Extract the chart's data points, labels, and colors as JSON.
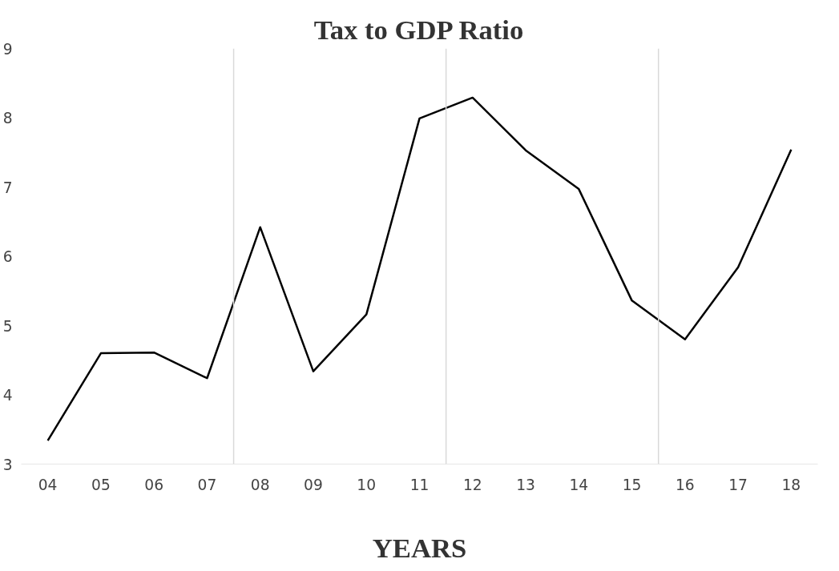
{
  "chart_data": {
    "type": "line",
    "title": "Tax to GDP Ratio",
    "xlabel": "YEARS",
    "x": [
      4,
      5,
      6,
      7,
      8,
      9,
      10,
      11,
      12,
      13,
      14,
      15,
      16,
      17,
      18
    ],
    "series": [
      {
        "color": "#000000",
        "values": [
          3.34,
          4.6,
          4.61,
          4.24,
          6.42,
          4.34,
          5.16,
          7.99,
          8.29,
          7.53,
          6.97,
          5.36,
          4.8,
          5.84,
          7.54
        ]
      }
    ],
    "xticks": [
      {
        "value": 4,
        "label": "04"
      },
      {
        "value": 5,
        "label": "05"
      },
      {
        "value": 6,
        "label": "06"
      },
      {
        "value": 7,
        "label": "07"
      },
      {
        "value": 8,
        "label": "08"
      },
      {
        "value": 9,
        "label": "09"
      },
      10,
      11,
      12,
      13,
      14,
      15,
      16,
      17,
      18
    ],
    "xlim": [
      3.5,
      18.5
    ],
    "ylim": [
      3,
      9
    ],
    "yticks": [
      3,
      4,
      5,
      6,
      7,
      8,
      9
    ],
    "ref_lines": [
      {
        "axis": "x",
        "value": 7.5,
        "color": "#d9d9d9"
      },
      {
        "axis": "x",
        "value": 11.5,
        "color": "#d9d9d9"
      },
      {
        "axis": "x",
        "value": 15.5,
        "color": "#d9d9d9"
      }
    ],
    "grid": false,
    "marker": "none",
    "line_style": "solid"
  }
}
